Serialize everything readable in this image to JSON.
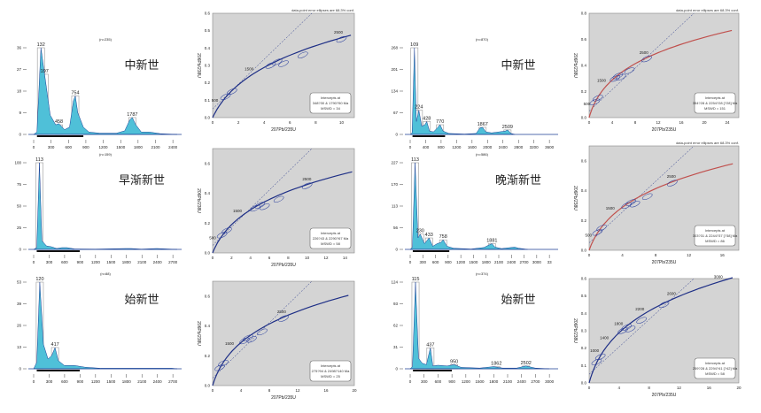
{
  "colors": {
    "kde_fill": "#4fc0d8",
    "kde_line": "#1a3e95",
    "hist": "#9a9a9a",
    "plot_bg": "#d4d4d4",
    "ellipse": "#2a3f9e",
    "concordia": "#1e2f86",
    "concordia_ext": "#c0504d"
  },
  "chart_data": [
    {
      "type": "area",
      "panel": "hist-1",
      "title": "中新世",
      "n_label": "(n=235)",
      "yticks": [
        "0",
        "9",
        "18",
        "27",
        "36"
      ],
      "ymax": 36,
      "xticks": [
        "0",
        "300",
        "600",
        "900",
        "1200",
        "1500",
        "1800",
        "2100",
        "2400"
      ],
      "xmax": 2600,
      "peaks": [
        {
          "x": 132,
          "y": 36,
          "label": "132"
        },
        {
          "x": 197,
          "y": 25,
          "label": "197"
        },
        {
          "x": 458,
          "y": 4,
          "label": "458"
        },
        {
          "x": 754,
          "y": 16,
          "label": "754"
        },
        {
          "x": 1787,
          "y": 7,
          "label": "1787"
        }
      ],
      "curve": [
        [
          0,
          0
        ],
        [
          60,
          1
        ],
        [
          132,
          36
        ],
        [
          197,
          25
        ],
        [
          300,
          8
        ],
        [
          400,
          4
        ],
        [
          458,
          4.5
        ],
        [
          560,
          2
        ],
        [
          650,
          3
        ],
        [
          720,
          14
        ],
        [
          754,
          16
        ],
        [
          800,
          9
        ],
        [
          900,
          3
        ],
        [
          1000,
          1
        ],
        [
          1200,
          0.5
        ],
        [
          1500,
          0.5
        ],
        [
          1650,
          1.5
        ],
        [
          1740,
          6
        ],
        [
          1787,
          7
        ],
        [
          1850,
          4
        ],
        [
          1950,
          1
        ],
        [
          2100,
          1
        ],
        [
          2300,
          0.3
        ],
        [
          2600,
          0
        ]
      ]
    },
    {
      "type": "area",
      "panel": "hist-2",
      "title": "早渐新世",
      "n_label": "(n=159)",
      "yticks": [
        "0",
        "25",
        "50",
        "75",
        "100"
      ],
      "ymax": 100,
      "xticks": [
        "0",
        "300",
        "600",
        "900",
        "1200",
        "1500",
        "1800",
        "2100",
        "2400",
        "2700"
      ],
      "xmax": 2800,
      "peaks": [
        {
          "x": 113,
          "y": 100,
          "label": "113"
        }
      ],
      "curve": [
        [
          0,
          0
        ],
        [
          60,
          2
        ],
        [
          113,
          100
        ],
        [
          160,
          10
        ],
        [
          250,
          4
        ],
        [
          350,
          3
        ],
        [
          450,
          1
        ],
        [
          550,
          2
        ],
        [
          650,
          2
        ],
        [
          800,
          0.5
        ],
        [
          1200,
          0.3
        ],
        [
          1800,
          1
        ],
        [
          1900,
          1
        ],
        [
          2100,
          0.3
        ],
        [
          2400,
          1
        ],
        [
          2800,
          0
        ]
      ]
    },
    {
      "type": "area",
      "panel": "hist-3",
      "title": "始新世",
      "n_label": "(n=88)",
      "yticks": [
        "0",
        "13",
        "26",
        "39",
        "53"
      ],
      "ymax": 53,
      "xticks": [
        "0",
        "300",
        "600",
        "900",
        "1200",
        "1500",
        "1800",
        "2100",
        "2400",
        "2700"
      ],
      "xmax": 2800,
      "peaks": [
        {
          "x": 120,
          "y": 53,
          "label": "120"
        },
        {
          "x": 417,
          "y": 13,
          "label": "417"
        }
      ],
      "curve": [
        [
          0,
          0
        ],
        [
          60,
          4
        ],
        [
          120,
          53
        ],
        [
          190,
          15
        ],
        [
          280,
          6
        ],
        [
          350,
          8
        ],
        [
          417,
          13
        ],
        [
          480,
          5
        ],
        [
          600,
          2
        ],
        [
          800,
          2
        ],
        [
          1000,
          1
        ],
        [
          1300,
          0.3
        ],
        [
          1700,
          0.3
        ],
        [
          2700,
          0.3
        ],
        [
          2800,
          0
        ]
      ]
    },
    {
      "type": "area",
      "panel": "hist-4",
      "title": "中新世",
      "n_label": "(n=870)",
      "yticks": [
        "0",
        "67",
        "134",
        "201",
        "268"
      ],
      "ymax": 268,
      "xticks": [
        "0",
        "400",
        "800",
        "1200",
        "1600",
        "2000",
        "2400",
        "2800",
        "3200",
        "3600"
      ],
      "xmax": 3700,
      "peaks": [
        {
          "x": 109,
          "y": 268,
          "label": "109"
        },
        {
          "x": 224,
          "y": 75,
          "label": "224"
        },
        {
          "x": 428,
          "y": 40,
          "label": "428"
        },
        {
          "x": 770,
          "y": 30,
          "label": "770"
        },
        {
          "x": 1867,
          "y": 22,
          "label": "1867"
        },
        {
          "x": 2509,
          "y": 14,
          "label": "2509"
        }
      ],
      "curve": [
        [
          0,
          0
        ],
        [
          50,
          5
        ],
        [
          109,
          268
        ],
        [
          160,
          40
        ],
        [
          224,
          75
        ],
        [
          300,
          25
        ],
        [
          380,
          30
        ],
        [
          428,
          40
        ],
        [
          500,
          10
        ],
        [
          600,
          8
        ],
        [
          700,
          20
        ],
        [
          770,
          30
        ],
        [
          850,
          10
        ],
        [
          1000,
          3
        ],
        [
          1400,
          1
        ],
        [
          1700,
          3
        ],
        [
          1800,
          20
        ],
        [
          1867,
          22
        ],
        [
          1950,
          8
        ],
        [
          2100,
          5
        ],
        [
          2300,
          8
        ],
        [
          2450,
          10
        ],
        [
          2509,
          14
        ],
        [
          2600,
          3
        ],
        [
          2700,
          0
        ]
      ]
    },
    {
      "type": "area",
      "panel": "hist-5",
      "title": "晚渐新世",
      "n_label": "(n=586)",
      "yticks": [
        "0",
        "56",
        "113",
        "170",
        "227"
      ],
      "ymax": 227,
      "xticks": [
        "0",
        "300",
        "600",
        "900",
        "1200",
        "1500",
        "1800",
        "2100",
        "2400",
        "2700",
        "3000",
        "33"
      ],
      "xmax": 3300,
      "peaks": [
        {
          "x": 113,
          "y": 227,
          "label": "113"
        },
        {
          "x": 230,
          "y": 40,
          "label": "230"
        },
        {
          "x": 433,
          "y": 30,
          "label": "433"
        },
        {
          "x": 758,
          "y": 25,
          "label": "758"
        },
        {
          "x": 1881,
          "y": 15,
          "label": "1881"
        }
      ],
      "curve": [
        [
          0,
          0
        ],
        [
          50,
          5
        ],
        [
          113,
          227
        ],
        [
          180,
          30
        ],
        [
          230,
          40
        ],
        [
          330,
          15
        ],
        [
          433,
          30
        ],
        [
          520,
          8
        ],
        [
          620,
          15
        ],
        [
          700,
          18
        ],
        [
          758,
          25
        ],
        [
          850,
          8
        ],
        [
          1000,
          3
        ],
        [
          1400,
          1
        ],
        [
          1700,
          5
        ],
        [
          1820,
          12
        ],
        [
          1881,
          15
        ],
        [
          1950,
          6
        ],
        [
          2100,
          2
        ],
        [
          2400,
          6
        ],
        [
          2500,
          3
        ],
        [
          2700,
          0
        ]
      ]
    },
    {
      "type": "area",
      "panel": "hist-6",
      "title": "始新世",
      "n_label": "(n=374)",
      "yticks": [
        "0",
        "31",
        "62",
        "93",
        "124"
      ],
      "ymax": 124,
      "xticks": [
        "0",
        "300",
        "600",
        "900",
        "1200",
        "1500",
        "1800",
        "2100",
        "2400",
        "2700",
        "3000"
      ],
      "xmax": 3100,
      "peaks": [
        {
          "x": 115,
          "y": 124,
          "label": "115"
        },
        {
          "x": 437,
          "y": 30,
          "label": "437"
        },
        {
          "x": 950,
          "y": 6,
          "label": "950"
        },
        {
          "x": 1862,
          "y": 3,
          "label": "1862"
        },
        {
          "x": 2502,
          "y": 4,
          "label": "2502"
        }
      ],
      "curve": [
        [
          0,
          0
        ],
        [
          50,
          3
        ],
        [
          115,
          124
        ],
        [
          180,
          15
        ],
        [
          260,
          8
        ],
        [
          350,
          6
        ],
        [
          437,
          30
        ],
        [
          490,
          4
        ],
        [
          600,
          5
        ],
        [
          800,
          4
        ],
        [
          950,
          6
        ],
        [
          1100,
          2
        ],
        [
          1500,
          1
        ],
        [
          1800,
          3
        ],
        [
          2000,
          1
        ],
        [
          2300,
          1
        ],
        [
          2500,
          4
        ],
        [
          2700,
          1
        ],
        [
          3000,
          0
        ]
      ]
    },
    {
      "type": "scatter",
      "panel": "conc-1",
      "note": "data-point error ellipses are 68.3% conf.",
      "xlabel": "207Pb/235U",
      "ylabel": "206Pb/238U",
      "xlim": [
        0,
        11
      ],
      "ylim": [
        0,
        0.6
      ],
      "xticks": [
        "0",
        "2",
        "4",
        "6",
        "8",
        "10"
      ],
      "yticks": [
        "0.0",
        "0.1",
        "0.2",
        "0.3",
        "0.4",
        "0.5",
        "0.6"
      ],
      "age_labels": [
        "500",
        "1500",
        "2500"
      ],
      "intercept": [
        "Intercepts at",
        "348?30 & 1790?50 Ma",
        "MSWD = 34"
      ]
    },
    {
      "type": "scatter",
      "panel": "conc-2",
      "note": "",
      "xlabel": "207Pb/235U",
      "ylabel": "206Pb/238U",
      "xlim": [
        0,
        15
      ],
      "ylim": [
        0,
        0.7
      ],
      "xticks": [
        "0",
        "2",
        "4",
        "6",
        "8",
        "10",
        "12",
        "14"
      ],
      "yticks": [
        "0.0",
        "0.2",
        "0.4",
        "0.6"
      ],
      "age_labels": [
        "500",
        "1500",
        "2500"
      ],
      "intercept": [
        "Intercepts at",
        "226?43 & 2290?67 Ma",
        "MSWD = 58"
      ]
    },
    {
      "type": "scatter",
      "panel": "conc-3",
      "note": "",
      "xlabel": "207Pb/235U",
      "ylabel": "206Pb/238U",
      "xlim": [
        0,
        20
      ],
      "ylim": [
        0,
        0.7
      ],
      "xticks": [
        "0",
        "4",
        "8",
        "12",
        "16",
        "20"
      ],
      "yticks": [
        "0.0",
        "0.2",
        "0.4",
        "0.6"
      ],
      "age_labels": [
        "1500",
        "2500"
      ],
      "intercept": [
        "Intercepts at",
        "275?94 & 2498?140 Ma",
        "MSWD = 25"
      ]
    },
    {
      "type": "scatter",
      "panel": "conc-4",
      "note": "data-point error ellipses are 68.3% conf.",
      "xlabel": "207Pb/235U",
      "ylabel": "206Pb/238U",
      "xlim": [
        0,
        26
      ],
      "ylim": [
        0,
        0.8
      ],
      "xticks": [
        "0",
        "4",
        "8",
        "12",
        "16",
        "20",
        "24"
      ],
      "yticks": [
        "0.0",
        "0.2",
        "0.4",
        "0.6",
        "0.8"
      ],
      "age_labels": [
        "500",
        "1500",
        "2500"
      ],
      "intercept": [
        "Intercepts at",
        "354?28 & 2254?28  [?28]  Ma",
        "MSWD = 151"
      ]
    },
    {
      "type": "scatter",
      "panel": "conc-5",
      "note": "data-point error ellipses are 68.3% conf.",
      "xlabel": "207Pb/235U",
      "ylabel": "206Pb/238U",
      "xlim": [
        0,
        18
      ],
      "ylim": [
        0,
        0.7
      ],
      "xticks": [
        "0",
        "4",
        "8",
        "12",
        "16"
      ],
      "yticks": [
        "0.0",
        "0.2",
        "0.4",
        "0.6"
      ],
      "age_labels": [
        "500",
        "1500",
        "2500"
      ],
      "intercept": [
        "Intercepts at",
        "303?31 & 2244?37  [?38]  Ma",
        "MSWD = 86"
      ]
    },
    {
      "type": "scatter",
      "panel": "conc-6",
      "note": "",
      "xlabel": "207Pb/235U",
      "ylabel": "206Pb/238U",
      "xlim": [
        0,
        20
      ],
      "ylim": [
        0,
        0.6
      ],
      "xticks": [
        "0",
        "4",
        "8",
        "12",
        "16",
        "20"
      ],
      "yticks": [
        "0.0",
        "0.1",
        "0.2",
        "0.3",
        "0.4",
        "0.5",
        "0.6"
      ],
      "age_labels": [
        "1000",
        "1400",
        "1800",
        "2200",
        "2600",
        "3000"
      ],
      "intercept": [
        "Intercepts at",
        "259?28 & 2294?41  [?42]  Ma",
        "MSWD = 58"
      ]
    }
  ]
}
